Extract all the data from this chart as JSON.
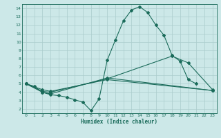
{
  "xlabel": "Humidex (Indice chaleur)",
  "background_color": "#cce8e8",
  "line_color": "#1a6b5a",
  "grid_color": "#aacccc",
  "xlim": [
    -0.5,
    23.5
  ],
  "ylim": [
    1.5,
    14.5
  ],
  "yticks": [
    2,
    3,
    4,
    5,
    6,
    7,
    8,
    9,
    10,
    11,
    12,
    13,
    14
  ],
  "xticks": [
    0,
    1,
    2,
    3,
    4,
    5,
    6,
    7,
    8,
    9,
    10,
    11,
    12,
    13,
    14,
    15,
    16,
    17,
    18,
    19,
    20,
    21,
    22,
    23
  ],
  "line1_x": [
    0,
    1,
    2,
    3,
    4,
    5,
    6,
    7,
    8,
    9,
    10,
    11,
    12,
    13,
    14,
    15,
    16,
    17,
    18,
    19,
    20,
    21
  ],
  "line1_y": [
    5.0,
    4.7,
    4.0,
    3.7,
    3.6,
    3.4,
    3.1,
    2.8,
    1.8,
    3.2,
    7.8,
    10.2,
    12.5,
    13.8,
    14.2,
    13.5,
    12.0,
    10.8,
    8.4,
    7.7,
    5.5,
    5.0
  ],
  "line2_x": [
    0,
    2,
    3,
    10,
    23
  ],
  "line2_y": [
    5.0,
    4.3,
    4.1,
    5.5,
    4.2
  ],
  "line3_x": [
    0,
    2,
    3,
    10,
    18,
    20,
    23
  ],
  "line3_y": [
    5.0,
    4.1,
    4.0,
    5.6,
    8.3,
    7.5,
    4.3
  ],
  "line4_x": [
    0,
    2,
    3,
    10,
    23
  ],
  "line4_y": [
    5.0,
    4.0,
    3.8,
    5.7,
    4.2
  ]
}
